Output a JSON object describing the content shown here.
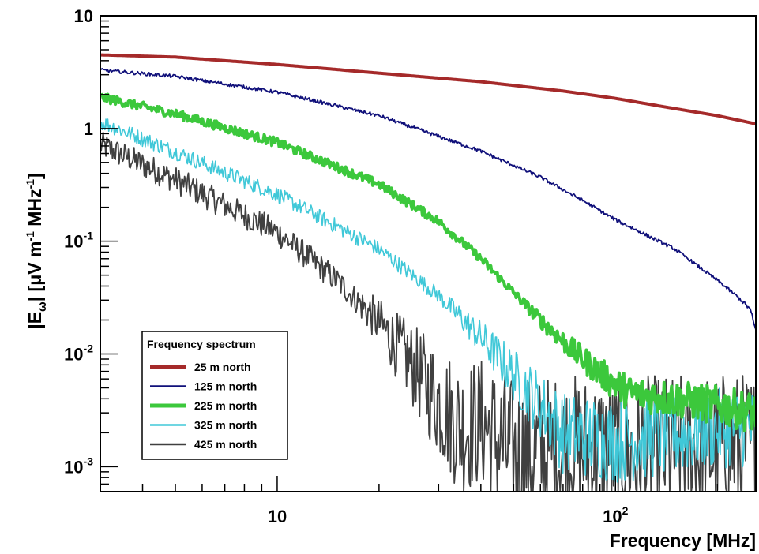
{
  "chart_data": {
    "type": "line",
    "title": "",
    "xlabel": "Frequency [MHz]",
    "ylabel": "|E_ω| [μV m^-1 MHz^-1]",
    "xscale": "log",
    "yscale": "log",
    "xlim": [
      3.0,
      260
    ],
    "ylim": [
      0.0006,
      10
    ],
    "x_ticks": [
      {
        "value": 10,
        "base": "10",
        "exp": ""
      },
      {
        "value": 100,
        "base": "10",
        "exp": "2"
      }
    ],
    "y_ticks": [
      {
        "value": 10,
        "base": "10",
        "exp": ""
      },
      {
        "value": 1,
        "base": "1",
        "exp": ""
      },
      {
        "value": 0.1,
        "base": "10",
        "exp": "-1"
      },
      {
        "value": 0.01,
        "base": "10",
        "exp": "-2"
      },
      {
        "value": 0.001,
        "base": "10",
        "exp": "-3"
      }
    ],
    "grid": false,
    "legend": {
      "title": "Frequency spectrum",
      "position": "bottom-left"
    },
    "series": [
      {
        "name": "25 m north",
        "color": "#a52a2a",
        "noise": 0.0,
        "points": [
          [
            3.0,
            4.5
          ],
          [
            5,
            4.3
          ],
          [
            10,
            3.7
          ],
          [
            20,
            3.1
          ],
          [
            40,
            2.6
          ],
          [
            70,
            2.15
          ],
          [
            100,
            1.85
          ],
          [
            150,
            1.5
          ],
          [
            200,
            1.3
          ],
          [
            260,
            1.1
          ]
        ]
      },
      {
        "name": "125 m north",
        "color": "#10107a",
        "noise": 0.015,
        "points": [
          [
            3.0,
            3.3
          ],
          [
            5,
            2.9
          ],
          [
            10,
            2.1
          ],
          [
            20,
            1.3
          ],
          [
            40,
            0.63
          ],
          [
            60,
            0.37
          ],
          [
            80,
            0.23
          ],
          [
            100,
            0.155
          ],
          [
            150,
            0.085
          ],
          [
            200,
            0.045
          ],
          [
            230,
            0.032
          ],
          [
            250,
            0.025
          ],
          [
            260,
            0.016
          ]
        ]
      },
      {
        "name": "225 m north",
        "color": "#3cc83c",
        "noise": 0.04,
        "points": [
          [
            3.0,
            1.9
          ],
          [
            5,
            1.35
          ],
          [
            10,
            0.75
          ],
          [
            20,
            0.32
          ],
          [
            30,
            0.15
          ],
          [
            40,
            0.07
          ],
          [
            50,
            0.035
          ],
          [
            60,
            0.02
          ],
          [
            70,
            0.013
          ],
          [
            80,
            0.009
          ],
          [
            95,
            0.006
          ],
          [
            110,
            0.0045
          ],
          [
            150,
            0.004
          ],
          [
            200,
            0.0035
          ],
          [
            260,
            0.003
          ]
        ]
      },
      {
        "name": "325 m north",
        "color": "#40c8d8",
        "noise": 0.07,
        "points": [
          [
            3.0,
            1.15
          ],
          [
            5,
            0.62
          ],
          [
            10,
            0.26
          ],
          [
            20,
            0.085
          ],
          [
            30,
            0.033
          ],
          [
            40,
            0.014
          ],
          [
            50,
            0.0065
          ],
          [
            60,
            0.0035
          ],
          [
            70,
            0.002
          ],
          [
            100,
            0.0017
          ],
          [
            150,
            0.0019
          ],
          [
            200,
            0.0022
          ],
          [
            260,
            0.0022
          ]
        ]
      },
      {
        "name": "425 m north",
        "color": "#404040",
        "noise": 0.12,
        "points": [
          [
            3.0,
            0.72
          ],
          [
            5,
            0.35
          ],
          [
            10,
            0.12
          ],
          [
            15,
            0.045
          ],
          [
            20,
            0.019
          ],
          [
            25,
            0.008
          ],
          [
            30,
            0.0038
          ],
          [
            35,
            0.0022
          ],
          [
            40,
            0.0025
          ],
          [
            50,
            0.0012
          ],
          [
            60,
            0.0013
          ],
          [
            80,
            0.0014
          ],
          [
            120,
            0.0013
          ],
          [
            180,
            0.0014
          ],
          [
            260,
            0.0015
          ]
        ]
      }
    ]
  }
}
